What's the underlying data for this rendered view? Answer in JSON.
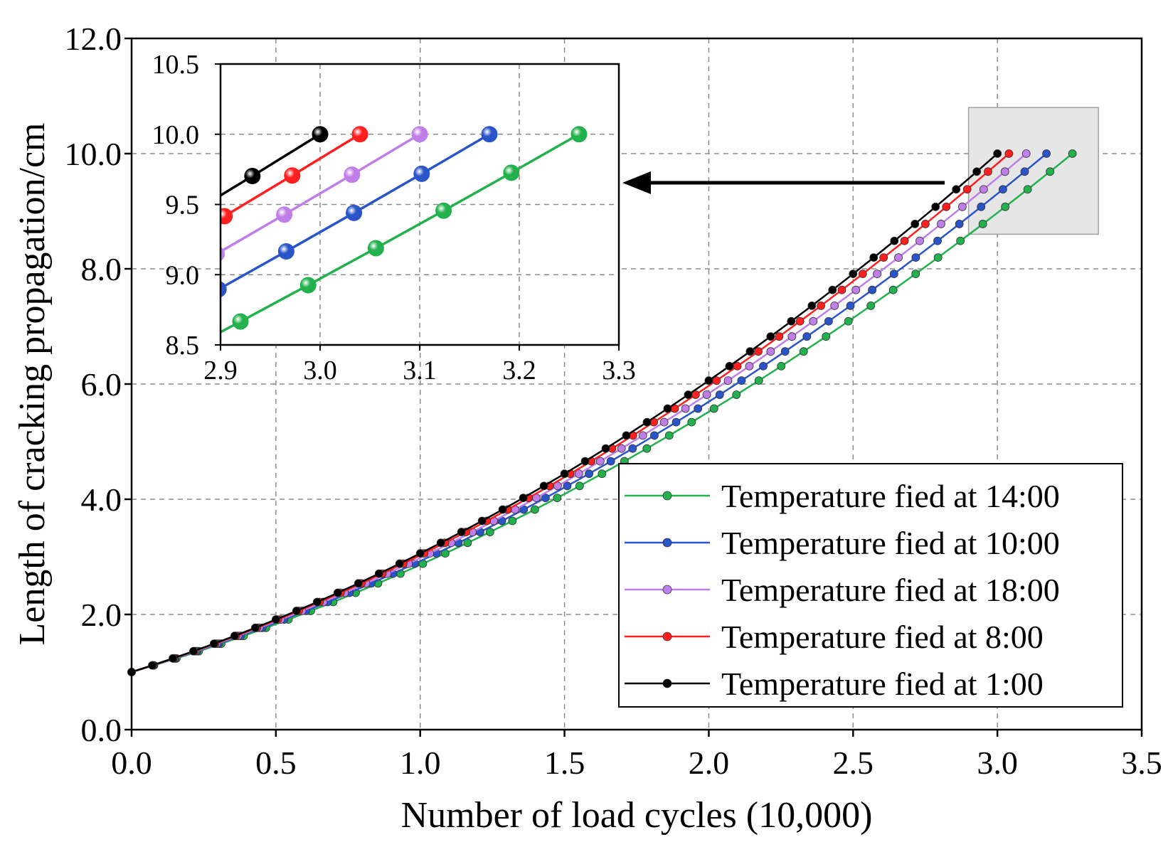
{
  "chart_data": {
    "type": "line",
    "xlabel": "Number of load cycles (10,000)",
    "ylabel": "Length of cracking propagation/cm",
    "xlim": [
      0.0,
      3.5
    ],
    "ylim": [
      0.0,
      12.0
    ],
    "xticks": [
      "0.0",
      "0.5",
      "1.0",
      "1.5",
      "2.0",
      "2.5",
      "3.0",
      "3.5"
    ],
    "yticks": [
      "0.0",
      "2.0",
      "4.0",
      "6.0",
      "8.0",
      "10.0",
      "12.0"
    ],
    "grid": true,
    "legend_position": "bottom-right",
    "series": [
      {
        "name": "Temperature fied at 14:00",
        "color": "#22b14c",
        "x_end": 3.26,
        "y_start": 1.0,
        "y_end": 10.0
      },
      {
        "name": "Temperature fied at 10:00",
        "color": "#2a55c8",
        "x_end": 3.17,
        "y_start": 1.0,
        "y_end": 10.0
      },
      {
        "name": "Temperature fied at 18:00",
        "color": "#c07ee8",
        "x_end": 3.1,
        "y_start": 1.0,
        "y_end": 10.0
      },
      {
        "name": "Temperature fied at 8:00",
        "color": "#ff1f1f",
        "x_end": 3.04,
        "y_start": 1.0,
        "y_end": 10.0
      },
      {
        "name": "Temperature fied at 1:00",
        "color": "#000000",
        "x_end": 3.0,
        "y_start": 1.0,
        "y_end": 10.0
      }
    ],
    "highlight_region": {
      "x_range": [
        2.9,
        3.35
      ],
      "y_range": [
        8.6,
        10.8
      ]
    },
    "inset": {
      "xlim": [
        2.9,
        3.3
      ],
      "ylim": [
        8.5,
        10.5
      ],
      "xticks": [
        "2.9",
        "3.0",
        "3.1",
        "3.2",
        "3.3"
      ],
      "yticks": [
        "8.5",
        "9.0",
        "9.5",
        "10.0",
        "10.5"
      ]
    }
  }
}
